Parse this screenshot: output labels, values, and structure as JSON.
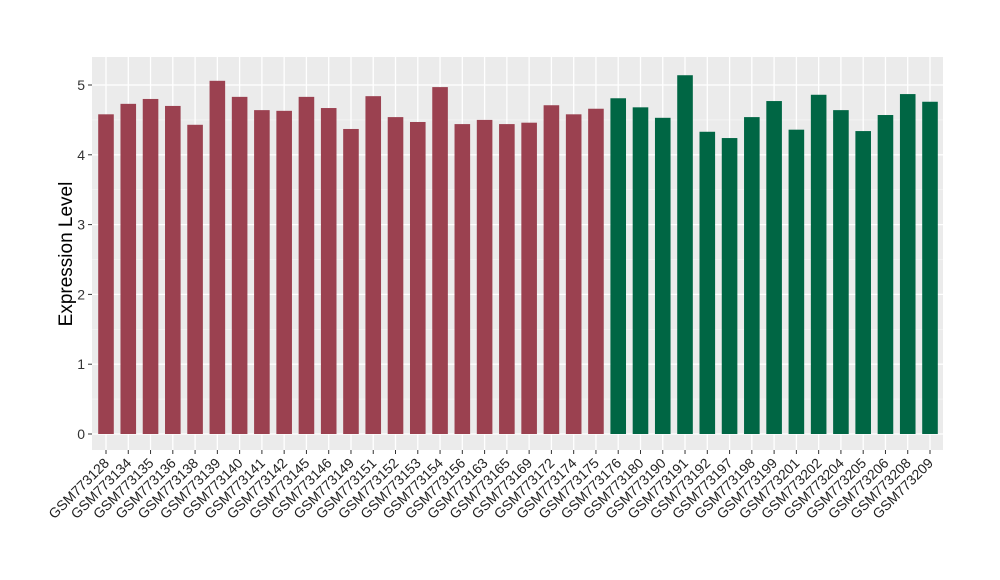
{
  "chart_data": {
    "type": "bar",
    "title": "",
    "xlabel": "",
    "ylabel": "Expression Level",
    "ylim": [
      -0.25,
      5.4
    ],
    "yticks": [
      0,
      1,
      2,
      3,
      4,
      5
    ],
    "grid": true,
    "legend": "none",
    "categories": [
      "GSM773128",
      "GSM773134",
      "GSM773135",
      "GSM773136",
      "GSM773138",
      "GSM773139",
      "GSM773140",
      "GSM773141",
      "GSM773142",
      "GSM773145",
      "GSM773146",
      "GSM773149",
      "GSM773151",
      "GSM773152",
      "GSM773153",
      "GSM773154",
      "GSM773156",
      "GSM773163",
      "GSM773165",
      "GSM773169",
      "GSM773172",
      "GSM773174",
      "GSM773175",
      "GSM773176",
      "GSM773180",
      "GSM773190",
      "GSM773191",
      "GSM773192",
      "GSM773197",
      "GSM773198",
      "GSM773199",
      "GSM773201",
      "GSM773202",
      "GSM773204",
      "GSM773205",
      "GSM773206",
      "GSM773208",
      "GSM773209"
    ],
    "values": [
      4.58,
      4.73,
      4.8,
      4.7,
      4.43,
      5.06,
      4.83,
      4.64,
      4.63,
      4.83,
      4.67,
      4.37,
      4.84,
      4.54,
      4.47,
      4.97,
      4.44,
      4.5,
      4.44,
      4.46,
      4.71,
      4.58,
      4.66,
      4.81,
      4.68,
      4.53,
      5.14,
      4.33,
      4.24,
      4.54,
      4.77,
      4.36,
      4.86,
      4.64,
      4.34,
      4.57,
      4.87,
      4.76
    ],
    "groups": [
      0,
      0,
      0,
      0,
      0,
      0,
      0,
      0,
      0,
      0,
      0,
      0,
      0,
      0,
      0,
      0,
      0,
      0,
      0,
      0,
      0,
      0,
      0,
      1,
      1,
      1,
      1,
      1,
      1,
      1,
      1,
      1,
      1,
      1,
      1,
      1,
      1,
      1
    ],
    "group_colors": [
      "#9B4150",
      "#006644"
    ]
  }
}
